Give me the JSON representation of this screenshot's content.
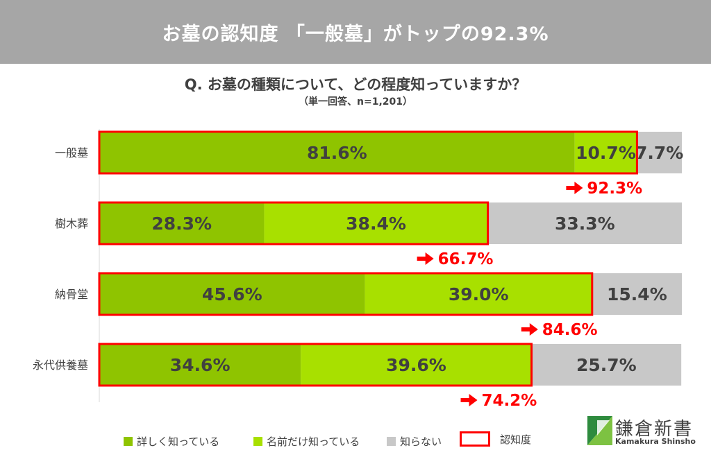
{
  "title": "お墓の認知度 「一般墓」がトップの92.3%",
  "question": "Q. お墓の種類について、どの程度知っていますか？",
  "subquestion": "（単一回答、n=1,201）",
  "colors": {
    "banner": "#a6a6a6",
    "detailed": "#8fc400",
    "name_only": "#a8e000",
    "unknown": "#c8c8c8",
    "awareness": "#ff0000"
  },
  "legend": {
    "detailed": "詳しく知っている",
    "name_only": "名前だけ知っている",
    "unknown": "知らない",
    "awareness": "認知度"
  },
  "logo": {
    "name_jp": "鎌倉新書",
    "name_en": "Kamakura Shinsho"
  },
  "chart_data": {
    "type": "bar",
    "orientation": "horizontal",
    "stacked": true,
    "unit": "%",
    "categories": [
      "一般墓",
      "樹木葬",
      "納骨堂",
      "永代供養墓"
    ],
    "series": [
      {
        "name": "詳しく知っている",
        "values": [
          81.6,
          28.3,
          45.6,
          34.6
        ],
        "labels": [
          "81.6%",
          "28.3%",
          "45.6%",
          "34.6%"
        ]
      },
      {
        "name": "名前だけ知っている",
        "values": [
          10.7,
          38.4,
          39.0,
          39.6
        ],
        "labels": [
          "10.7%",
          "38.4%",
          "39.0%",
          "39.6%"
        ]
      },
      {
        "name": "知らない",
        "values": [
          7.7,
          33.3,
          15.4,
          25.7
        ],
        "labels": [
          "7.7%",
          "33.3%",
          "15.4%",
          "25.7%"
        ]
      }
    ],
    "awareness": {
      "name": "認知度",
      "values": [
        92.3,
        66.7,
        84.6,
        74.2
      ],
      "labels": [
        "92.3%",
        "66.7%",
        "84.6%",
        "74.2%"
      ]
    },
    "xlim": [
      0,
      100
    ]
  }
}
